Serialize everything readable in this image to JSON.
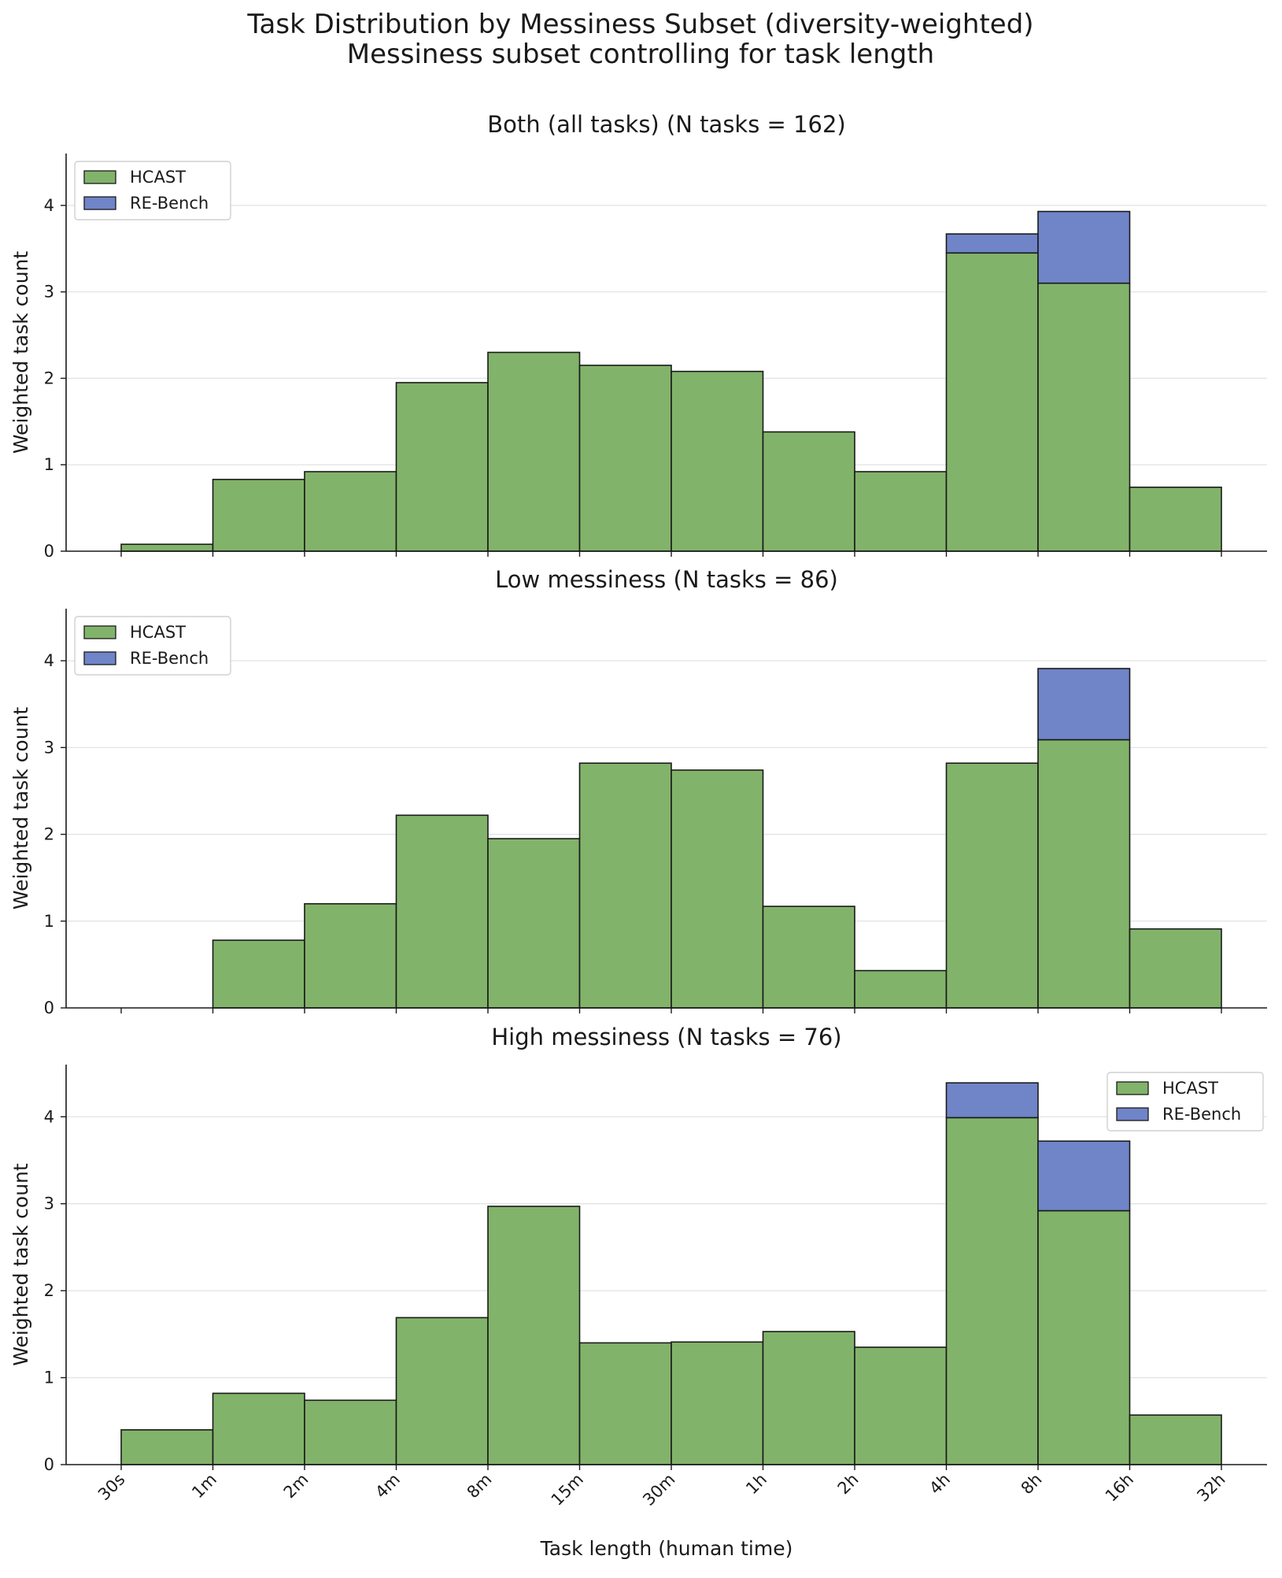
{
  "figure": {
    "title": "Task Distribution by Messiness Subset (diversity-weighted)",
    "subtitle": "Messiness subset controlling for task length",
    "xlabel": "Task length (human time)"
  },
  "colors": {
    "hcast": "#82b36a",
    "rebench": "#7084c8",
    "edge": "#1a1a1a",
    "grid": "#e3e3e3"
  },
  "chart_data": [
    {
      "type": "bar",
      "stacked": true,
      "title": "Both (all tasks) (N tasks = 162)",
      "ylabel": "Weighted task count",
      "xlabel": "",
      "categories": [
        "30s",
        "1m",
        "2m",
        "4m",
        "8m",
        "15m",
        "30m",
        "1h",
        "2h",
        "4h",
        "8h",
        "16h",
        "32h"
      ],
      "bins": [
        {
          "from": "30s",
          "to": "1m"
        },
        {
          "from": "1m",
          "to": "2m"
        },
        {
          "from": "2m",
          "to": "4m"
        },
        {
          "from": "4m",
          "to": "8m"
        },
        {
          "from": "8m",
          "to": "15m"
        },
        {
          "from": "15m",
          "to": "30m"
        },
        {
          "from": "30m",
          "to": "1h"
        },
        {
          "from": "1h",
          "to": "2h"
        },
        {
          "from": "2h",
          "to": "4h"
        },
        {
          "from": "4h",
          "to": "8h"
        },
        {
          "from": "8h",
          "to": "16h"
        },
        {
          "from": "16h",
          "to": "32h"
        }
      ],
      "series": [
        {
          "name": "HCAST",
          "values": [
            0.08,
            0.83,
            0.92,
            1.95,
            2.3,
            2.15,
            2.08,
            1.38,
            0.92,
            3.45,
            3.1,
            0.74
          ]
        },
        {
          "name": "RE-Bench",
          "values": [
            0,
            0,
            0,
            0,
            0,
            0,
            0,
            0,
            0,
            0.22,
            0.83,
            0
          ]
        }
      ],
      "ylim": [
        0,
        4.6
      ],
      "yticks": [
        0,
        1,
        2,
        3,
        4
      ],
      "grid": "horizontal",
      "show_xtick_labels": false,
      "legend": {
        "position": "top-left",
        "entries": [
          "HCAST",
          "RE-Bench"
        ]
      }
    },
    {
      "type": "bar",
      "stacked": true,
      "title": "Low messiness (N tasks = 86)",
      "ylabel": "Weighted task count",
      "xlabel": "",
      "categories": [
        "30s",
        "1m",
        "2m",
        "4m",
        "8m",
        "15m",
        "30m",
        "1h",
        "2h",
        "4h",
        "8h",
        "16h",
        "32h"
      ],
      "bins": [
        {
          "from": "30s",
          "to": "1m"
        },
        {
          "from": "1m",
          "to": "2m"
        },
        {
          "from": "2m",
          "to": "4m"
        },
        {
          "from": "4m",
          "to": "8m"
        },
        {
          "from": "8m",
          "to": "15m"
        },
        {
          "from": "15m",
          "to": "30m"
        },
        {
          "from": "30m",
          "to": "1h"
        },
        {
          "from": "1h",
          "to": "2h"
        },
        {
          "from": "2h",
          "to": "4h"
        },
        {
          "from": "4h",
          "to": "8h"
        },
        {
          "from": "8h",
          "to": "16h"
        },
        {
          "from": "16h",
          "to": "32h"
        }
      ],
      "series": [
        {
          "name": "HCAST",
          "values": [
            0,
            0.78,
            1.2,
            2.22,
            1.95,
            2.82,
            2.74,
            1.17,
            0.43,
            2.82,
            3.09,
            0.91
          ]
        },
        {
          "name": "RE-Bench",
          "values": [
            0,
            0,
            0,
            0,
            0,
            0,
            0,
            0,
            0,
            0,
            0.82,
            0
          ]
        }
      ],
      "ylim": [
        0,
        4.6
      ],
      "yticks": [
        0,
        1,
        2,
        3,
        4
      ],
      "grid": "horizontal",
      "show_xtick_labels": false,
      "legend": {
        "position": "top-left",
        "entries": [
          "HCAST",
          "RE-Bench"
        ]
      }
    },
    {
      "type": "bar",
      "stacked": true,
      "title": "High messiness (N tasks = 76)",
      "ylabel": "Weighted task count",
      "xlabel": "Task length (human time)",
      "categories": [
        "30s",
        "1m",
        "2m",
        "4m",
        "8m",
        "15m",
        "30m",
        "1h",
        "2h",
        "4h",
        "8h",
        "16h",
        "32h"
      ],
      "bins": [
        {
          "from": "30s",
          "to": "1m"
        },
        {
          "from": "1m",
          "to": "2m"
        },
        {
          "from": "2m",
          "to": "4m"
        },
        {
          "from": "4m",
          "to": "8m"
        },
        {
          "from": "8m",
          "to": "15m"
        },
        {
          "from": "15m",
          "to": "30m"
        },
        {
          "from": "30m",
          "to": "1h"
        },
        {
          "from": "1h",
          "to": "2h"
        },
        {
          "from": "2h",
          "to": "4h"
        },
        {
          "from": "4h",
          "to": "8h"
        },
        {
          "from": "8h",
          "to": "16h"
        },
        {
          "from": "16h",
          "to": "32h"
        }
      ],
      "series": [
        {
          "name": "HCAST",
          "values": [
            0.4,
            0.82,
            0.74,
            1.69,
            2.97,
            1.4,
            1.41,
            1.53,
            1.35,
            3.99,
            2.92,
            0.57
          ]
        },
        {
          "name": "RE-Bench",
          "values": [
            0,
            0,
            0,
            0,
            0,
            0,
            0,
            0,
            0,
            0.4,
            0.8,
            0
          ]
        }
      ],
      "ylim": [
        0,
        4.6
      ],
      "yticks": [
        0,
        1,
        2,
        3,
        4
      ],
      "grid": "horizontal",
      "show_xtick_labels": true,
      "legend": {
        "position": "top-right",
        "entries": [
          "HCAST",
          "RE-Bench"
        ]
      }
    }
  ]
}
